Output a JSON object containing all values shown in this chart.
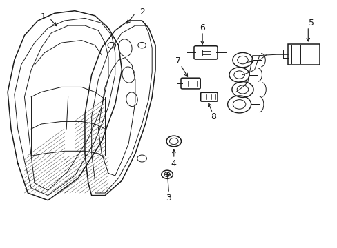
{
  "background_color": "#ffffff",
  "line_color": "#1a1a1a",
  "figsize": [
    4.89,
    3.6
  ],
  "dpi": 100,
  "lamp_outer": {
    "x": [
      0.05,
      0.03,
      0.02,
      0.04,
      0.08,
      0.13,
      0.2,
      0.28,
      0.33,
      0.36,
      0.37,
      0.35,
      0.3,
      0.22,
      0.14,
      0.08,
      0.05
    ],
    "y": [
      0.35,
      0.5,
      0.65,
      0.78,
      0.87,
      0.92,
      0.94,
      0.93,
      0.9,
      0.84,
      0.74,
      0.6,
      0.45,
      0.32,
      0.22,
      0.25,
      0.35
    ]
  },
  "lamp_inner1": {
    "x": [
      0.07,
      0.06,
      0.05,
      0.07,
      0.11,
      0.15,
      0.21,
      0.28,
      0.32,
      0.34,
      0.35,
      0.33,
      0.28,
      0.21,
      0.14,
      0.09,
      0.07
    ],
    "y": [
      0.37,
      0.5,
      0.63,
      0.75,
      0.84,
      0.89,
      0.91,
      0.9,
      0.87,
      0.81,
      0.72,
      0.59,
      0.46,
      0.34,
      0.25,
      0.27,
      0.37
    ]
  },
  "lamp_inner2": {
    "x": [
      0.09,
      0.08,
      0.08,
      0.1,
      0.13,
      0.17,
      0.22,
      0.27,
      0.31,
      0.33,
      0.34,
      0.32,
      0.27,
      0.21,
      0.15,
      0.1,
      0.09
    ],
    "y": [
      0.38,
      0.5,
      0.62,
      0.73,
      0.82,
      0.87,
      0.89,
      0.88,
      0.85,
      0.79,
      0.71,
      0.59,
      0.47,
      0.36,
      0.27,
      0.29,
      0.38
    ]
  },
  "housing_outer": {
    "x": [
      0.25,
      0.24,
      0.25,
      0.28,
      0.33,
      0.38,
      0.43,
      0.46,
      0.47,
      0.46,
      0.43,
      0.38,
      0.33,
      0.27,
      0.25
    ],
    "y": [
      0.27,
      0.45,
      0.63,
      0.78,
      0.88,
      0.93,
      0.93,
      0.87,
      0.75,
      0.62,
      0.48,
      0.34,
      0.24,
      0.22,
      0.27
    ]
  },
  "housing_inner": {
    "x": [
      0.27,
      0.26,
      0.27,
      0.3,
      0.34,
      0.39,
      0.43,
      0.45,
      0.46,
      0.44,
      0.42,
      0.37,
      0.32,
      0.28,
      0.27
    ],
    "y": [
      0.28,
      0.45,
      0.62,
      0.76,
      0.86,
      0.91,
      0.91,
      0.85,
      0.74,
      0.61,
      0.48,
      0.35,
      0.26,
      0.23,
      0.28
    ]
  }
}
